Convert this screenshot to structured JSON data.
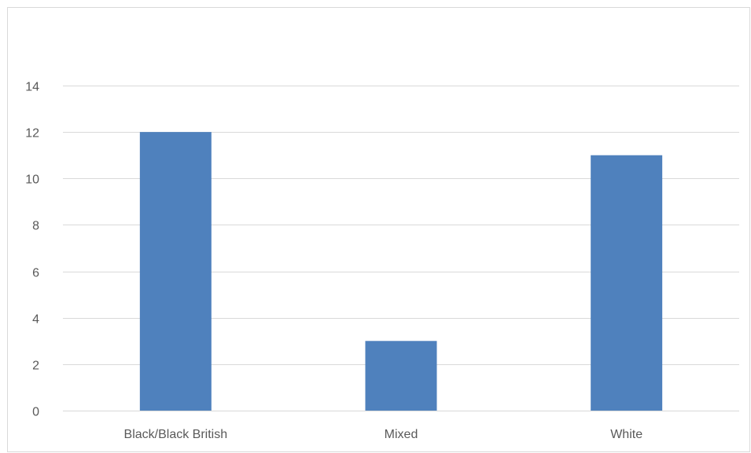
{
  "chart_data": {
    "type": "bar",
    "title": "",
    "xlabel": "",
    "ylabel": "",
    "categories": [
      "Black/Black British",
      "Mixed",
      "White"
    ],
    "values": [
      12,
      3,
      11
    ],
    "ylim": [
      0,
      14
    ],
    "yticks": [
      0,
      2,
      4,
      6,
      8,
      10,
      12,
      14
    ],
    "grid": true,
    "legend": "none",
    "bar_color": "#4f81bd",
    "gridline_color": "#d9d9d9",
    "label_color": "#595959"
  }
}
